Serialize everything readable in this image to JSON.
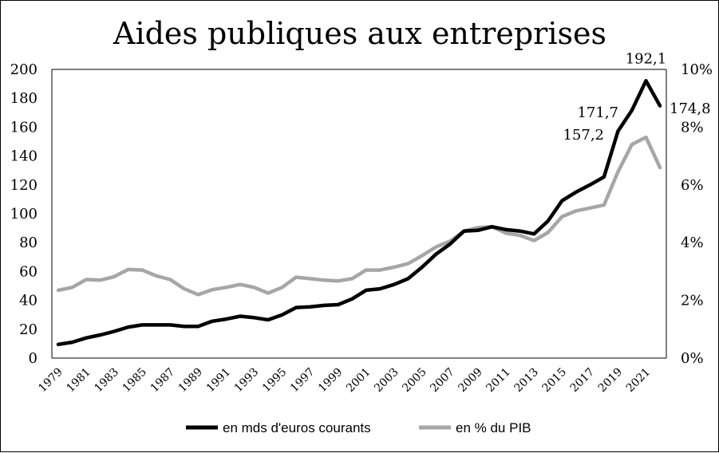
{
  "chart_data": {
    "type": "line",
    "title": "Aides publiques aux entreprises",
    "x": [
      1979,
      1980,
      1981,
      1982,
      1983,
      1984,
      1985,
      1986,
      1987,
      1988,
      1989,
      1990,
      1991,
      1992,
      1993,
      1994,
      1995,
      1996,
      1997,
      1998,
      1999,
      2000,
      2001,
      2002,
      2003,
      2004,
      2005,
      2006,
      2007,
      2008,
      2009,
      2010,
      2011,
      2012,
      2013,
      2014,
      2015,
      2016,
      2017,
      2018,
      2019,
      2020,
      2021,
      2022
    ],
    "x_tick_labels": [
      "1979",
      "1981",
      "1983",
      "1985",
      "1987",
      "1989",
      "1991",
      "1993",
      "1995",
      "1997",
      "1999",
      "2001",
      "2003",
      "2005",
      "2007",
      "2009",
      "2011",
      "2013",
      "2015",
      "2017",
      "2019",
      "2021"
    ],
    "y_left": {
      "range": [
        0,
        200
      ],
      "ticks": [
        "0",
        "20",
        "40",
        "60",
        "80",
        "100",
        "120",
        "140",
        "160",
        "180",
        "200"
      ]
    },
    "y_right": {
      "range": [
        0,
        10
      ],
      "ticks": [
        "0%",
        "2%",
        "4%",
        "6%",
        "8%",
        "10%"
      ]
    },
    "series": [
      {
        "name": "en mds d'euros courants",
        "axis": "left",
        "color": "#000000",
        "values": [
          9.5,
          11,
          14,
          16,
          18.5,
          21.5,
          23,
          23,
          23,
          22,
          22,
          25.5,
          27,
          29,
          28,
          26.5,
          30,
          35,
          35.5,
          36.5,
          37,
          41,
          47,
          48,
          51,
          55,
          63,
          72,
          79,
          88,
          88.5,
          91,
          89,
          88,
          86,
          95,
          109,
          115,
          120,
          125.5,
          157.2,
          171.7,
          192.1,
          174.8
        ]
      },
      {
        "name": "en % du PIB",
        "axis": "right",
        "color": "#a6a6a6",
        "values": [
          2.35,
          2.45,
          2.72,
          2.7,
          2.82,
          3.07,
          3.05,
          2.85,
          2.72,
          2.4,
          2.2,
          2.37,
          2.45,
          2.55,
          2.45,
          2.25,
          2.45,
          2.8,
          2.75,
          2.7,
          2.67,
          2.75,
          3.05,
          3.05,
          3.15,
          3.27,
          3.55,
          3.85,
          4.05,
          4.4,
          4.52,
          4.55,
          4.33,
          4.25,
          4.07,
          4.35,
          4.9,
          5.1,
          5.2,
          5.3,
          6.45,
          7.4,
          7.65,
          6.6
        ]
      }
    ],
    "annotations": [
      {
        "label": "192,1",
        "x": 2021
      },
      {
        "label": "171,7",
        "x": 2020
      },
      {
        "label": "157,2",
        "x": 2019
      },
      {
        "label": "174,8",
        "x": 2022
      }
    ],
    "legend": {
      "placement": "bottom",
      "entries": [
        "en mds d'euros courants",
        "en % du PIB"
      ]
    },
    "grid": false
  }
}
